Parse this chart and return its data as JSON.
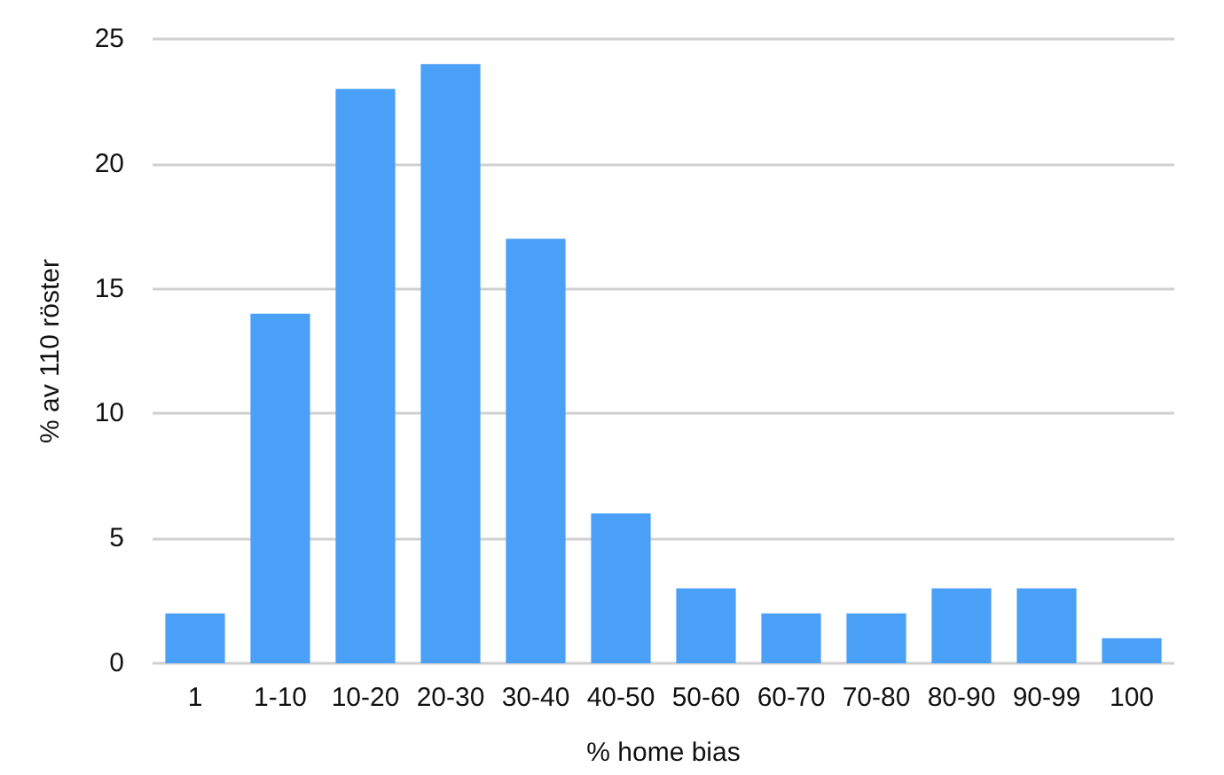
{
  "chart_data": {
    "type": "bar",
    "xlabel": "% home bias",
    "ylabel": "% av 110 röster",
    "categories": [
      "1",
      "1-10",
      "10-20",
      "20-30",
      "30-40",
      "40-50",
      "50-60",
      "60-70",
      "70-80",
      "80-90",
      "90-99",
      "100"
    ],
    "values": [
      2,
      14,
      23,
      24,
      17,
      6,
      3,
      2,
      2,
      3,
      3,
      1
    ],
    "color": "#4a9ff7",
    "ylim": [
      0,
      25
    ],
    "yticks": [
      0,
      5,
      10,
      15,
      20,
      25
    ],
    "grid": "y"
  }
}
